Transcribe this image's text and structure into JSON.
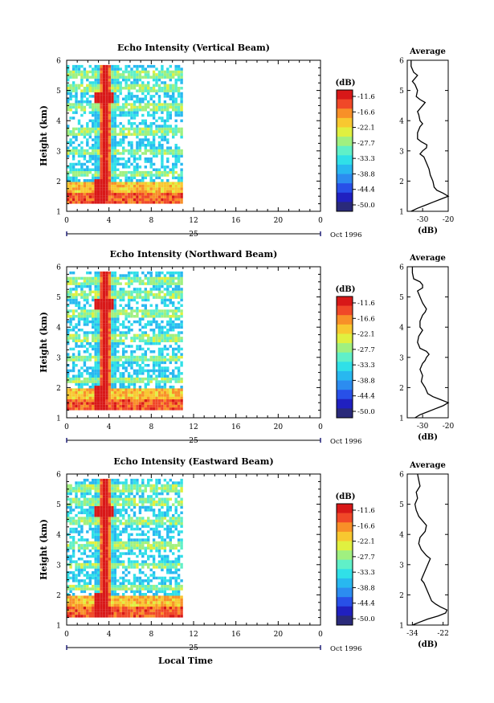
{
  "chart_data": [
    {
      "type": "heatmap",
      "title": "Echo Intensity (Vertical Beam)",
      "ylabel": "Height (km)",
      "y_ticks": [
        "1",
        "2",
        "3",
        "4",
        "5",
        "6"
      ],
      "ylim": [
        1,
        6
      ],
      "x_ticks": [
        "0",
        "4",
        "8",
        "12",
        "16",
        "20",
        "0"
      ],
      "xlim": [
        0,
        24
      ],
      "data_extent_hours": [
        0,
        11
      ],
      "date_day": "25",
      "date_label": "Oct 1996",
      "colorbar_unit": "(dB)",
      "colorbar_ticks": [
        "-11.6",
        "-16.6",
        "-22.1",
        "-27.7",
        "-33.3",
        "-38.8",
        "-44.4",
        "-50.0"
      ],
      "strong_echo_hour": 3.5,
      "strong_echo_heights_km": [
        1.5,
        4.7
      ],
      "profile": {
        "title": "Average",
        "xlabel": "(dB)",
        "x_ticks": [
          "-30",
          "-20"
        ],
        "xlim": [
          -36,
          -20
        ],
        "height_km": [
          1.0,
          1.1,
          1.2,
          1.3,
          1.4,
          1.5,
          1.6,
          1.7,
          1.8,
          2.0,
          2.2,
          2.4,
          2.6,
          2.8,
          2.9,
          3.0,
          3.1,
          3.2,
          3.3,
          3.4,
          3.6,
          3.8,
          3.9,
          4.0,
          4.2,
          4.3,
          4.4,
          4.5,
          4.6,
          4.7,
          4.8,
          5.0,
          5.2,
          5.3,
          5.4,
          5.5,
          5.6,
          5.8,
          6.0
        ],
        "db": [
          -34.5,
          -32,
          -29,
          -26,
          -23,
          -20,
          -22,
          -24.5,
          -25.5,
          -26,
          -27,
          -27.5,
          -28.5,
          -29.5,
          -31,
          -30,
          -28.5,
          -28.3,
          -30.5,
          -32,
          -32,
          -31,
          -30,
          -31,
          -31.5,
          -32,
          -31,
          -30,
          -29,
          -31,
          -32.5,
          -32,
          -33,
          -34,
          -33,
          -32,
          -33.5,
          -34.5,
          -34.5
        ]
      }
    },
    {
      "type": "heatmap",
      "title": "Echo Intensity (Northward Beam)",
      "ylabel": "Height (km)",
      "y_ticks": [
        "1",
        "2",
        "3",
        "4",
        "5",
        "6"
      ],
      "ylim": [
        1,
        6
      ],
      "x_ticks": [
        "0",
        "4",
        "8",
        "12",
        "16",
        "20",
        "0"
      ],
      "xlim": [
        0,
        24
      ],
      "data_extent_hours": [
        0,
        11
      ],
      "date_day": "25",
      "date_label": "Oct 1996",
      "colorbar_unit": "(dB)",
      "colorbar_ticks": [
        "-11.6",
        "-16.6",
        "-22.1",
        "-27.7",
        "-33.3",
        "-38.8",
        "-44.4",
        "-50.0"
      ],
      "strong_echo_hour": 3.5,
      "strong_echo_heights_km": [
        1.5,
        4.7
      ],
      "profile": {
        "title": "Average",
        "xlabel": "(dB)",
        "x_ticks": [
          "-30",
          "-20"
        ],
        "xlim": [
          -36,
          -20
        ],
        "height_km": [
          1.0,
          1.1,
          1.2,
          1.3,
          1.4,
          1.5,
          1.6,
          1.7,
          1.8,
          2.0,
          2.2,
          2.4,
          2.6,
          2.8,
          2.9,
          3.0,
          3.1,
          3.2,
          3.3,
          3.5,
          3.7,
          3.9,
          4.0,
          4.2,
          4.4,
          4.5,
          4.6,
          4.8,
          5.0,
          5.1,
          5.2,
          5.3,
          5.4,
          5.5,
          5.6,
          5.8,
          6.0
        ],
        "db": [
          -33,
          -31,
          -28,
          -25,
          -22,
          -20,
          -23,
          -26,
          -28,
          -29,
          -30.5,
          -30,
          -31,
          -30,
          -29,
          -28.5,
          -27.5,
          -28.5,
          -31,
          -32,
          -31.5,
          -30,
          -31,
          -31,
          -30,
          -29,
          -28.5,
          -30,
          -31,
          -31.5,
          -32,
          -30,
          -30,
          -31,
          -33.5,
          -34,
          -34
        ]
      }
    },
    {
      "type": "heatmap",
      "title": "Echo Intensity (Eastward Beam)",
      "ylabel": "Height (km)",
      "xlabel": "Local Time",
      "y_ticks": [
        "1",
        "2",
        "3",
        "4",
        "5",
        "6"
      ],
      "ylim": [
        1,
        6
      ],
      "x_ticks": [
        "0",
        "4",
        "8",
        "12",
        "16",
        "20",
        "0"
      ],
      "xlim": [
        0,
        24
      ],
      "data_extent_hours": [
        0,
        11
      ],
      "date_day": "25",
      "date_label": "Oct 1996",
      "colorbar_unit": "(dB)",
      "colorbar_ticks": [
        "-11.6",
        "-16.6",
        "-22.1",
        "-27.7",
        "-33.3",
        "-38.8",
        "-44.4",
        "-50.0"
      ],
      "strong_echo_hour": 3.5,
      "strong_echo_heights_km": [
        1.5,
        4.7
      ],
      "profile": {
        "title": "Average",
        "xlabel": "(dB)",
        "x_ticks": [
          "-34",
          "-22"
        ],
        "xlim": [
          -36,
          -20
        ],
        "height_km": [
          1.0,
          1.1,
          1.2,
          1.3,
          1.4,
          1.5,
          1.6,
          1.7,
          1.8,
          2.0,
          2.2,
          2.4,
          2.5,
          2.6,
          2.8,
          3.0,
          3.1,
          3.2,
          3.3,
          3.5,
          3.7,
          3.9,
          4.0,
          4.1,
          4.3,
          4.5,
          4.6,
          4.7,
          4.8,
          5.0,
          5.2,
          5.4,
          5.6,
          5.8,
          6.0
        ],
        "db": [
          -34,
          -31,
          -28,
          -24,
          -21,
          -20.5,
          -23,
          -25,
          -26.5,
          -27.5,
          -28.5,
          -29.5,
          -30.5,
          -30,
          -29,
          -28,
          -27.5,
          -27,
          -28.5,
          -30.5,
          -31.5,
          -31,
          -30,
          -29,
          -28.5,
          -30.5,
          -31.5,
          -32,
          -32.5,
          -33,
          -32,
          -32.5,
          -31,
          -31.5,
          -32
        ]
      }
    }
  ]
}
